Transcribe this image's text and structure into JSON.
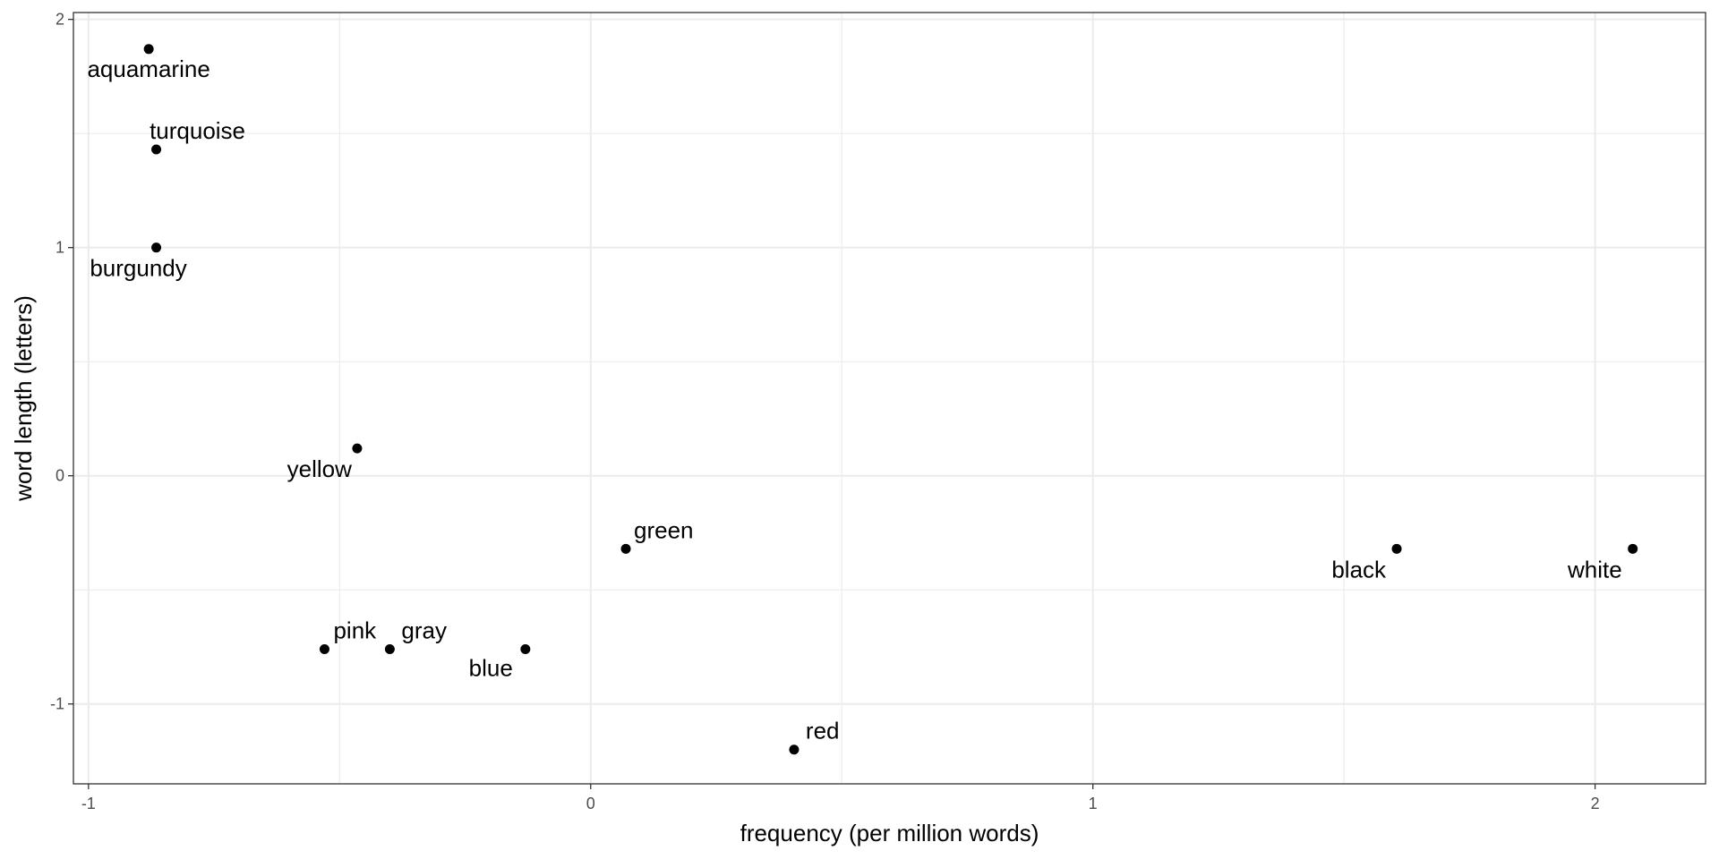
{
  "chart_data": {
    "type": "scatter",
    "xlabel": "frequency (per million words)",
    "ylabel": "word length (letters)",
    "xlim": [
      -1.03,
      2.22
    ],
    "ylim": [
      -1.35,
      2.03
    ],
    "x_ticks": [
      -1,
      0,
      1,
      2
    ],
    "y_ticks": [
      -1,
      0,
      1,
      2
    ],
    "x_tick_labels": [
      "-1",
      "0",
      "1",
      "2"
    ],
    "y_tick_labels": [
      "-1",
      "0",
      "1",
      "2"
    ],
    "grid": true,
    "point_color": "#000000",
    "grid_color": "#ebebeb",
    "points": [
      {
        "label": "aquamarine",
        "x": -0.88,
        "y": 1.87
      },
      {
        "label": "turquoise",
        "x": -0.865,
        "y": 1.43
      },
      {
        "label": "burgundy",
        "x": -0.865,
        "y": 1.0
      },
      {
        "label": "yellow",
        "x": -0.465,
        "y": 0.12
      },
      {
        "label": "green",
        "x": 0.07,
        "y": -0.32
      },
      {
        "label": "pink",
        "x": -0.53,
        "y": -0.76
      },
      {
        "label": "gray",
        "x": -0.4,
        "y": -0.76
      },
      {
        "label": "blue",
        "x": -0.13,
        "y": -0.76
      },
      {
        "label": "red",
        "x": 0.405,
        "y": -1.2
      },
      {
        "label": "black",
        "x": 1.605,
        "y": -0.32
      },
      {
        "label": "white",
        "x": 2.075,
        "y": -0.32
      }
    ]
  }
}
